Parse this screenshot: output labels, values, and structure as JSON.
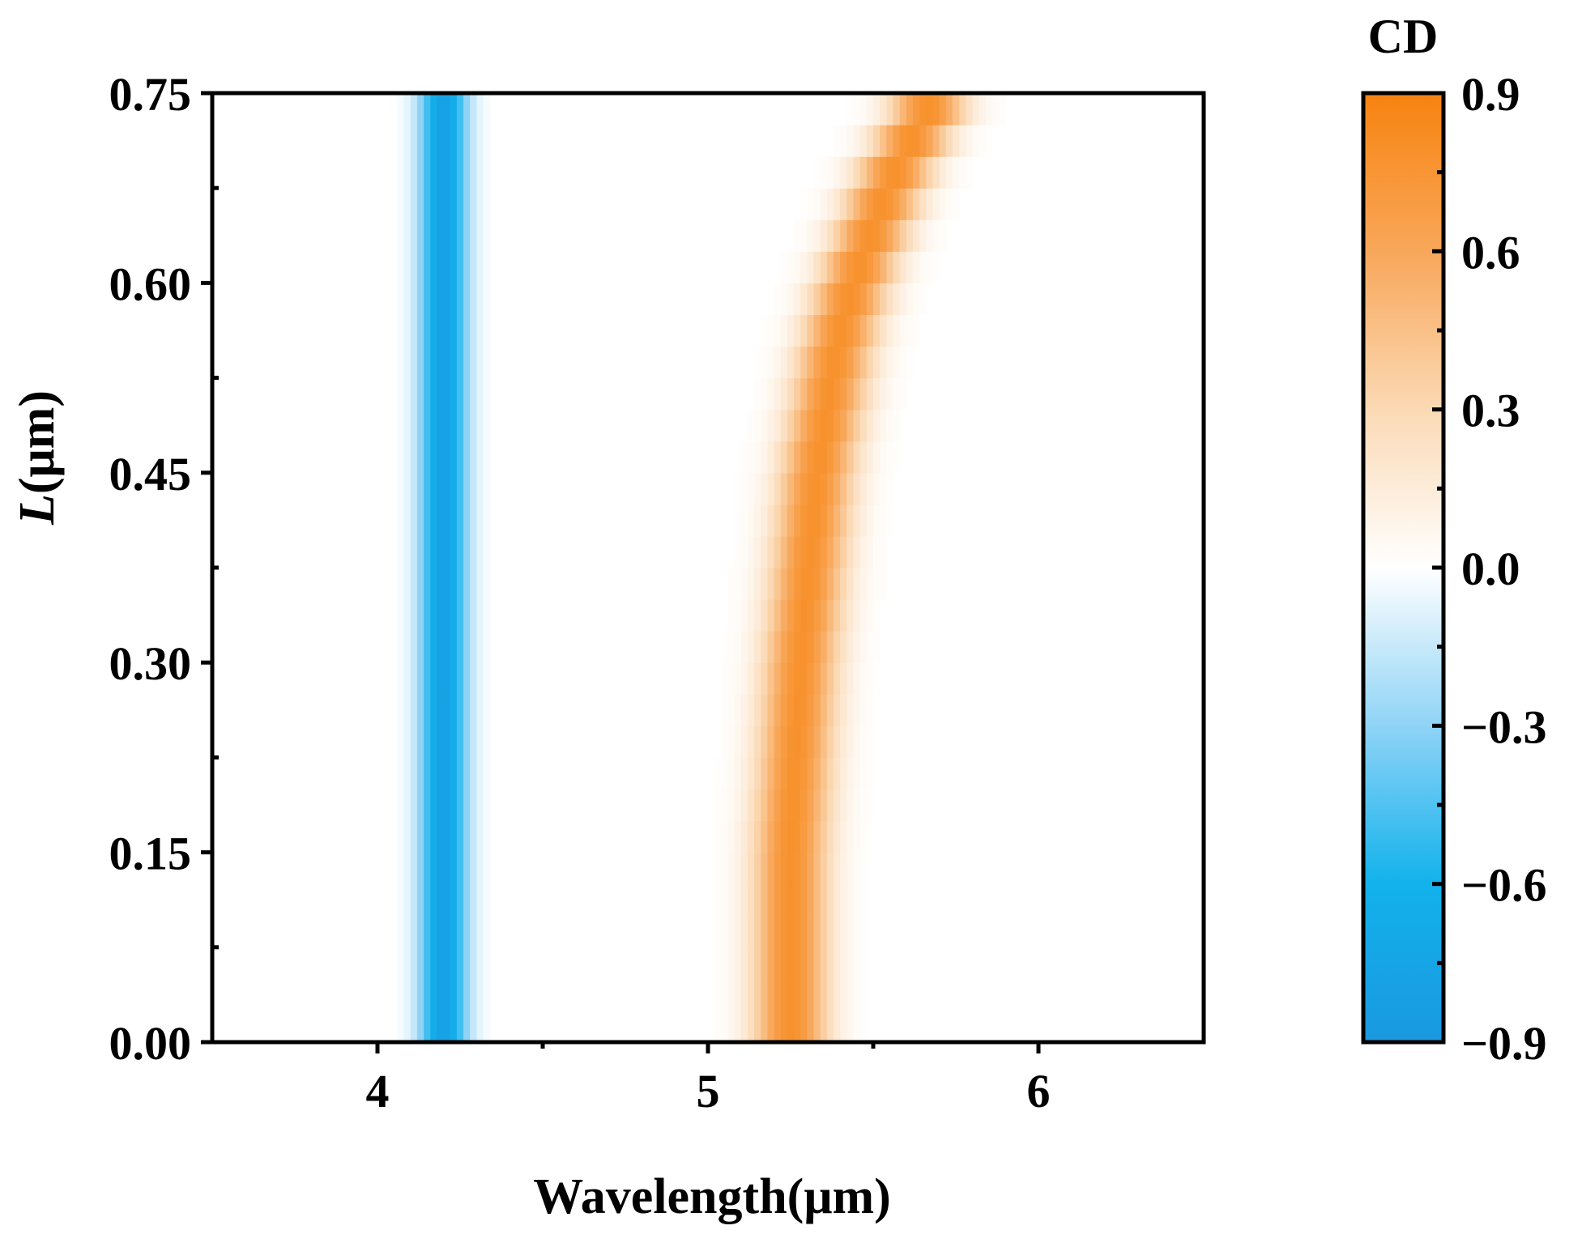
{
  "chart_data": {
    "type": "heatmap",
    "xlabel": "Wavelength(μm)",
    "ylabel": {
      "italic": "L",
      "rest": "(μm)"
    },
    "xlim": [
      3.5,
      6.5
    ],
    "ylim": [
      0,
      0.75
    ],
    "xticks": [
      {
        "value": 4,
        "label": "4"
      },
      {
        "value": 5,
        "label": "5"
      },
      {
        "value": 6,
        "label": "6"
      }
    ],
    "xminor": [
      4.5,
      5.5
    ],
    "yticks": [
      {
        "value": 0,
        "label": "0.00"
      },
      {
        "value": 0.15,
        "label": "0.15"
      },
      {
        "value": 0.3,
        "label": "0.30"
      },
      {
        "value": 0.45,
        "label": "0.45"
      },
      {
        "value": 0.6,
        "label": "0.60"
      },
      {
        "value": 0.75,
        "label": "0.75"
      }
    ],
    "yminor": [
      0.075,
      0.225,
      0.375,
      0.525,
      0.675
    ],
    "colorbar": {
      "title": "CD",
      "range": [
        -0.9,
        0.9
      ],
      "ticks": [
        {
          "value": 0.9,
          "label": "0.9"
        },
        {
          "value": 0.6,
          "label": "0.6"
        },
        {
          "value": 0.3,
          "label": "0.3"
        },
        {
          "value": 0.0,
          "label": "0.0"
        },
        {
          "value": -0.3,
          "label": "−0.3"
        },
        {
          "value": -0.6,
          "label": "−0.6"
        },
        {
          "value": -0.9,
          "label": "−0.9"
        }
      ],
      "minor": [
        0.75,
        0.45,
        0.15,
        -0.15,
        -0.45,
        -0.75
      ],
      "colors": {
        "-0.9": "#1a98e0",
        "-0.6": "#12b2ec",
        "-0.3": "#8fd3f6",
        "0.0": "#ffffff",
        "0.3": "#fbd9b4",
        "0.6": "#f8a75a",
        "0.9": "#f7830f"
      }
    },
    "bands": [
      {
        "name": "negative",
        "peak_value": -0.8,
        "center": [
          [
            0,
            4.2
          ],
          [
            0.75,
            4.2
          ]
        ],
        "sigma": 0.05
      },
      {
        "name": "positive",
        "peak_value": 0.78,
        "center": [
          [
            0,
            5.25
          ],
          [
            0.15,
            5.25
          ],
          [
            0.3,
            5.28
          ],
          [
            0.45,
            5.33
          ],
          [
            0.55,
            5.39
          ],
          [
            0.6,
            5.44
          ],
          [
            0.68,
            5.55
          ],
          [
            0.75,
            5.69
          ]
        ],
        "sigma": 0.08
      }
    ],
    "grid": false
  }
}
